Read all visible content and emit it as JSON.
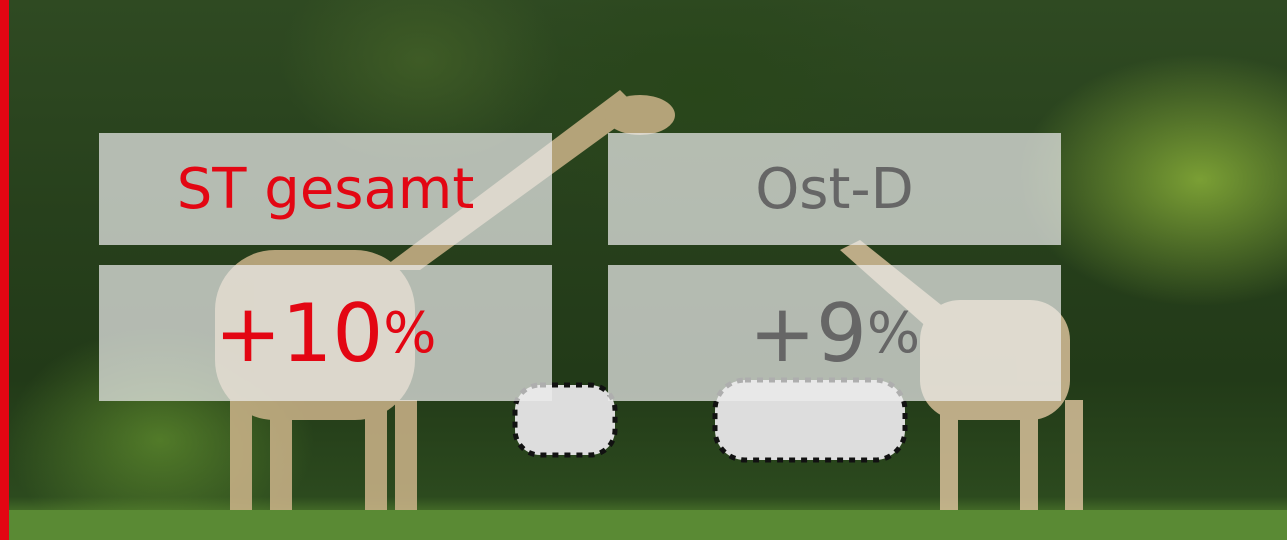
{
  "tiles": [
    {
      "label": "ST gesamt",
      "value": {
        "number": "+10",
        "unit": "%"
      }
    },
    {
      "label": "Ost-D",
      "value": {
        "number": "+9",
        "unit": "%"
      }
    }
  ]
}
